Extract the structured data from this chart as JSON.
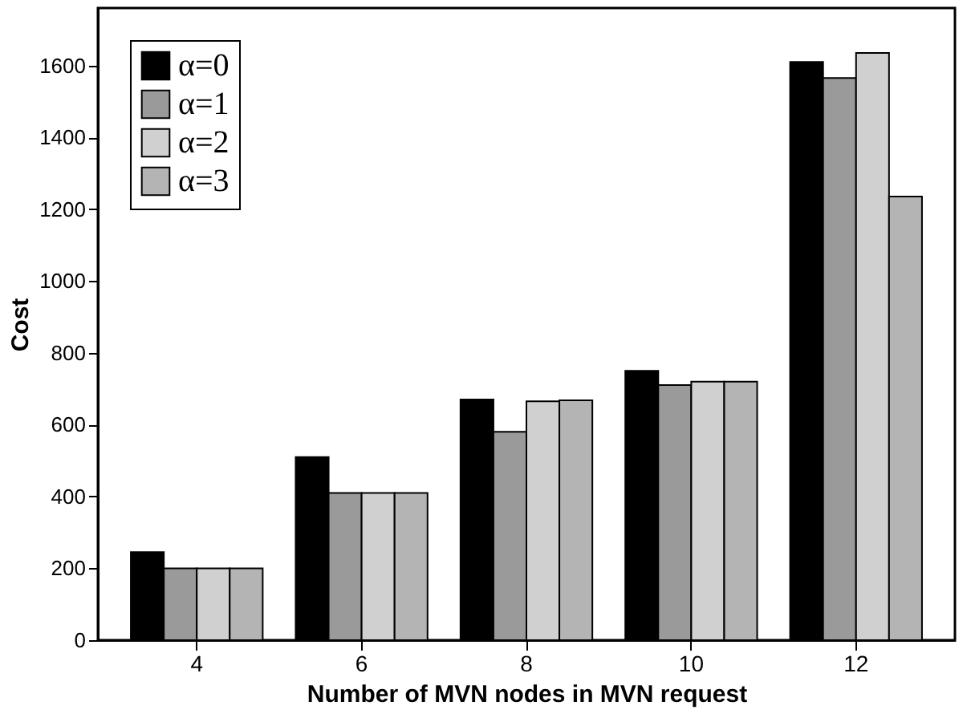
{
  "chart_data": {
    "type": "bar",
    "xlabel": "Number of  MVN nodes in MVN request",
    "ylabel": "Cost",
    "categories": [
      "4",
      "6",
      "8",
      "10",
      "12"
    ],
    "series": [
      {
        "name": "α=0",
        "color": "#000000",
        "values": [
          245,
          510,
          670,
          750,
          1610
        ]
      },
      {
        "name": "α=1",
        "color": "#9a9a9a",
        "values": [
          200,
          410,
          580,
          710,
          1565
        ]
      },
      {
        "name": "α=2",
        "color": "#d0d0d0",
        "values": [
          200,
          410,
          665,
          720,
          1635
        ]
      },
      {
        "name": "α=3",
        "color": "#b4b4b4",
        "values": [
          200,
          410,
          668,
          720,
          1235
        ]
      }
    ],
    "ylim": [
      0,
      1760
    ],
    "yticks": [
      0,
      200,
      400,
      600,
      800,
      1000,
      1200,
      1400,
      1600
    ],
    "grid": false,
    "legend": "top left"
  }
}
